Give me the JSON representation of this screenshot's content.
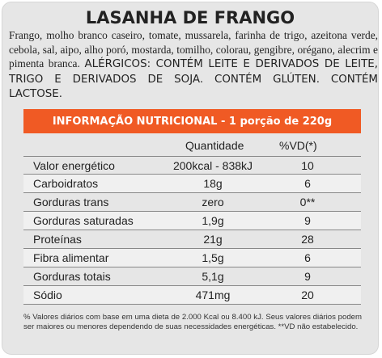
{
  "title": "LASANHA DE FRANGO",
  "ingredients": "Frango, molho branco caseiro, tomate, mussarela, farinha de trigo, azeitona verde, cebola, sal, aipo, alho poró, mostarda, tomilho, colorau, gengibre, orégano, alecrim e pimenta branca.",
  "allergens": "ALÉRGICOS: CONTÉM LEITE E DERIVADOS DE LEITE, TRIGO E DERIVADOS DE SOJA. CONTÉM GLÚTEN. CONTÉM LACTOSE.",
  "banner": "INFORMAÇÃO NUTRICIONAL - 1 porção de 220g",
  "table": {
    "header": {
      "quantity": "Quantidade",
      "vd": "%VD(*)"
    },
    "rows": [
      {
        "label": "Valor energético",
        "qty": "200kcal - 838kJ",
        "vd": "10"
      },
      {
        "label": "Carboidratos",
        "qty": "18g",
        "vd": "6"
      },
      {
        "label": "Gorduras trans",
        "qty": "zero",
        "vd": "0**"
      },
      {
        "label": "Gorduras saturadas",
        "qty": "1,9g",
        "vd": "9"
      },
      {
        "label": "Proteínas",
        "qty": "21g",
        "vd": "28"
      },
      {
        "label": "Fibra alimentar",
        "qty": "1,5g",
        "vd": "6"
      },
      {
        "label": "Gorduras totais",
        "qty": "5,1g",
        "vd": "9"
      },
      {
        "label": "Sódio",
        "qty": "471mg",
        "vd": "20"
      }
    ]
  },
  "footnote": "% Valores diários com base em uma dieta de 2.000 Kcal ou 8.400 kJ. Seus valores diários podem ser maiores ou menores dependendo de suas necessidades energéticas. **VD não estabelecido.",
  "colors": {
    "accent": "#f05a24",
    "card": "#e6e6e6"
  }
}
